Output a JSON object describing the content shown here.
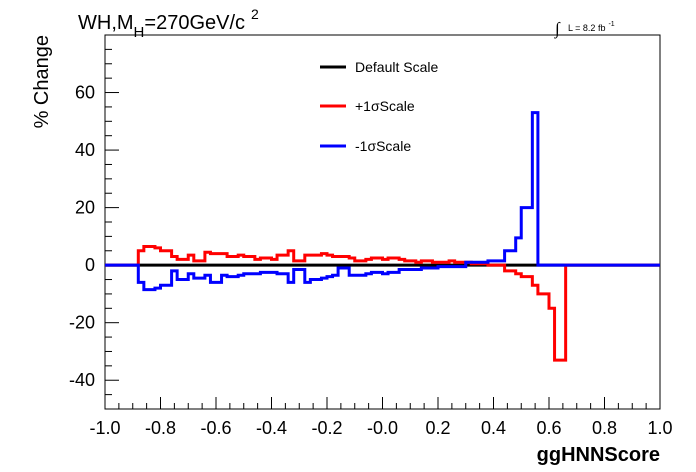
{
  "chart_data": {
    "type": "line",
    "step": true,
    "title": {
      "main": "WH,M",
      "sub": "H",
      "rest": "=270GeV/c",
      "sup": "2"
    },
    "lumi": {
      "integral": "∫",
      "text": "L = 8.2 fb",
      "sup": "-1"
    },
    "xlabel": "ggHNNScore",
    "ylabel": "% Change",
    "xlim": [
      -1.0,
      1.0
    ],
    "ylim": [
      -50,
      80
    ],
    "xticks": [
      -1.0,
      -0.8,
      -0.6,
      -0.4,
      -0.2,
      0.0,
      0.2,
      0.4,
      0.6,
      0.8,
      1.0
    ],
    "xtick_labels": [
      "-1.0",
      "-0.8",
      "-0.6",
      "-0.4",
      "-0.2",
      "-0.0",
      "0.2",
      "0.4",
      "0.6",
      "0.8",
      "1.0"
    ],
    "yticks": [
      -40,
      -20,
      0,
      20,
      40,
      60
    ],
    "ytick_labels": [
      "-40",
      "-20",
      "0",
      "20",
      "40",
      "60"
    ],
    "legend_position": "top-center",
    "bin_edges": [
      -1.0,
      -0.9,
      -0.88,
      -0.86,
      -0.82,
      -0.8,
      -0.76,
      -0.74,
      -0.7,
      -0.68,
      -0.64,
      -0.62,
      -0.58,
      -0.56,
      -0.52,
      -0.5,
      -0.46,
      -0.44,
      -0.4,
      -0.38,
      -0.34,
      -0.32,
      -0.28,
      -0.26,
      -0.22,
      -0.2,
      -0.18,
      -0.16,
      -0.12,
      -0.1,
      -0.06,
      -0.04,
      0.0,
      0.02,
      0.06,
      0.08,
      0.12,
      0.14,
      0.18,
      0.2,
      0.24,
      0.26,
      0.3,
      0.32,
      0.36,
      0.38,
      0.42,
      0.44,
      0.48,
      0.5,
      0.54,
      0.56,
      0.6,
      0.62,
      0.66,
      0.68,
      0.72,
      0.74,
      0.78,
      0.8,
      0.82,
      0.84,
      0.86,
      0.88,
      0.9,
      1.0
    ],
    "series": [
      {
        "name": "Default Scale",
        "color": "#000000",
        "values": [
          0,
          0,
          0,
          0,
          0,
          0,
          0,
          0,
          0,
          0,
          0,
          0,
          0,
          0,
          0,
          0,
          0,
          0,
          0,
          0,
          0,
          0,
          0,
          0,
          0,
          0,
          0,
          0,
          0,
          0,
          0,
          0,
          0,
          0,
          0,
          0,
          0,
          0,
          0,
          0,
          0,
          0,
          0,
          0,
          0,
          0,
          0,
          0,
          0,
          0,
          0,
          0,
          0,
          0,
          0,
          0,
          0,
          0,
          0,
          0,
          0,
          0,
          0,
          0,
          0
        ]
      },
      {
        "name": "+1σScale",
        "color": "#ff0000",
        "values": [
          0,
          0,
          5,
          6.5,
          6,
          5,
          3,
          2,
          3.5,
          1.5,
          4.5,
          4,
          4,
          3,
          3.5,
          3,
          2,
          2.5,
          2,
          3.5,
          5,
          1.5,
          3.5,
          3.5,
          4,
          3.5,
          3,
          3,
          2.5,
          1.5,
          2,
          2.5,
          2,
          2.5,
          2,
          1.5,
          1,
          1.5,
          1,
          1,
          1.5,
          1,
          1,
          0.5,
          0.5,
          0,
          0,
          -2,
          -3,
          -4,
          -7,
          -10,
          -15,
          -33,
          0,
          0,
          0,
          0,
          0,
          0,
          0,
          0,
          0,
          0,
          0
        ]
      },
      {
        "name": "-1σScale",
        "color": "#0000ff",
        "values": [
          0,
          0,
          -6,
          -8.5,
          -8,
          -7,
          -2,
          -5,
          -3,
          -4.5,
          -3.5,
          -6,
          -3.5,
          -4,
          -3.5,
          -3,
          -3,
          -2.5,
          -2.5,
          -3,
          -6,
          -1.5,
          -6,
          -5,
          -4.5,
          -4,
          -3.5,
          -1,
          -3.5,
          -3.5,
          -3,
          -2.5,
          -3,
          -2.5,
          -1.5,
          -1.5,
          -1.5,
          -1,
          -1,
          -0.5,
          -0.5,
          -0.5,
          1,
          1,
          1,
          1.5,
          1.5,
          5,
          9.5,
          20,
          53,
          0,
          0,
          0,
          0,
          0,
          0,
          0,
          0,
          0,
          0,
          0,
          0,
          0,
          0
        ]
      }
    ]
  }
}
